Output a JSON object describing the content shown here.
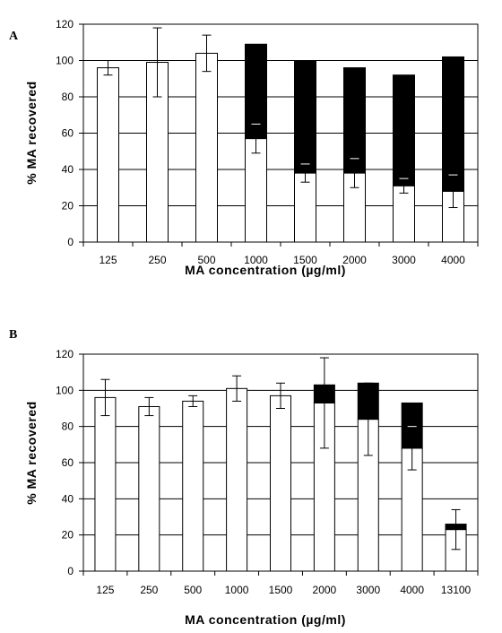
{
  "chart_data": [
    {
      "type": "bar",
      "panel_label": "A",
      "categories": [
        "125",
        "250",
        "500",
        "1000",
        "1500",
        "2000",
        "3000",
        "4000"
      ],
      "series": [
        {
          "values": [
            96,
            99,
            104,
            57,
            38,
            38,
            31,
            28
          ],
          "color": "#ffffff",
          "error": [
            4,
            19,
            10,
            8,
            5,
            8,
            4,
            9
          ]
        },
        {
          "values": [
            0,
            0,
            0,
            52,
            62,
            58,
            61,
            74
          ],
          "color": "#000000"
        }
      ],
      "stacked": true,
      "xlabel": "MA concentration (µg/ml)",
      "ylabel": "% MA recovered",
      "ylim": [
        0,
        120
      ],
      "yticks": [
        0,
        20,
        40,
        60,
        80,
        100,
        120
      ],
      "grid": true
    },
    {
      "type": "bar",
      "panel_label": "B",
      "categories": [
        "125",
        "250",
        "500",
        "1000",
        "1500",
        "2000",
        "3000",
        "4000",
        "13100"
      ],
      "series": [
        {
          "values": [
            96,
            91,
            94,
            101,
            97,
            93,
            84,
            68,
            23
          ],
          "color": "#ffffff",
          "error": [
            10,
            5,
            3,
            7,
            7,
            25,
            20,
            12,
            11
          ]
        },
        {
          "values": [
            0,
            0,
            0,
            0,
            0,
            10,
            20,
            25,
            3
          ],
          "color": "#000000"
        }
      ],
      "stacked": true,
      "xlabel": "MA concentration (µg/ml)",
      "ylabel": "% MA recovered",
      "ylim": [
        0,
        120
      ],
      "yticks": [
        0,
        20,
        40,
        60,
        80,
        100,
        120
      ],
      "grid": true
    }
  ]
}
